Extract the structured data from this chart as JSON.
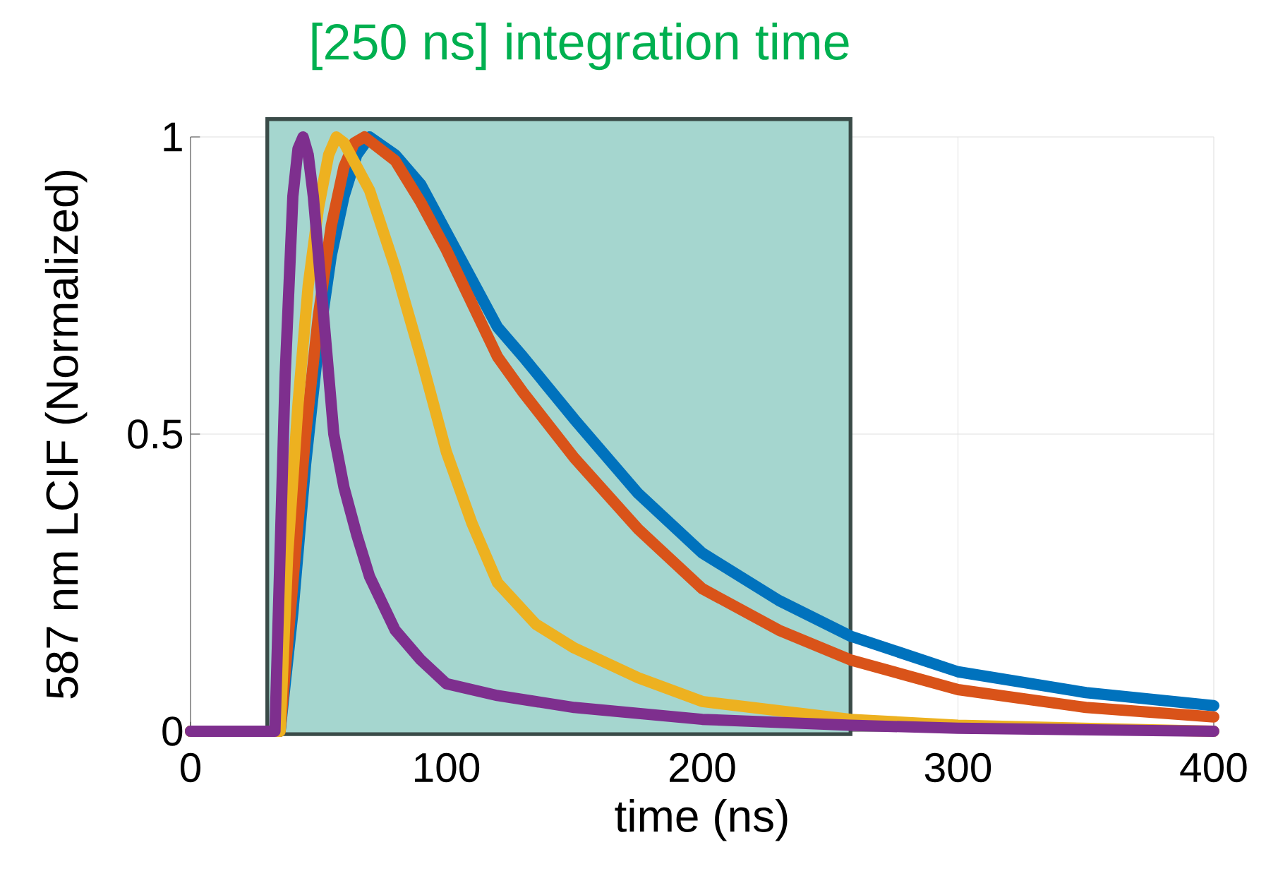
{
  "chart_data": {
    "type": "line",
    "title": "[250 ns] integration time",
    "xlabel": "time (ns)",
    "ylabel": "587 nm LCIF (Normalized)",
    "xlim": [
      0,
      400
    ],
    "xticks": [
      0,
      100,
      200,
      300,
      400
    ],
    "ylim": [
      0,
      1
    ],
    "yticks": [
      0,
      {
        "value": 0.5,
        "label": "0.5"
      },
      1
    ],
    "grid": true,
    "marker": "none",
    "line_style": "solid",
    "bands": [
      {
        "axis": "x",
        "from": 30,
        "to": 258,
        "color": "#a5d6cf"
      }
    ],
    "series": [
      {
        "color": "#0072bd",
        "x": [
          0,
          35,
          40,
          45,
          50,
          55,
          60,
          65,
          70,
          80,
          90,
          100,
          110,
          120,
          130,
          150,
          175,
          200,
          230,
          258,
          300,
          350,
          400
        ],
        "values": [
          0,
          0,
          0.2,
          0.45,
          0.65,
          0.8,
          0.9,
          0.97,
          1.0,
          0.97,
          0.92,
          0.84,
          0.76,
          0.68,
          0.63,
          0.525,
          0.4,
          0.3,
          0.22,
          0.16,
          0.1,
          0.065,
          0.043
        ]
      },
      {
        "color": "#d95319",
        "x": [
          0,
          35,
          40,
          45,
          50,
          55,
          60,
          64,
          68,
          80,
          90,
          100,
          110,
          120,
          130,
          150,
          175,
          200,
          230,
          258,
          300,
          350,
          400
        ],
        "values": [
          0,
          0,
          0.25,
          0.5,
          0.7,
          0.85,
          0.95,
          0.99,
          1.0,
          0.96,
          0.89,
          0.81,
          0.72,
          0.63,
          0.57,
          0.46,
          0.34,
          0.24,
          0.17,
          0.12,
          0.07,
          0.04,
          0.024
        ]
      },
      {
        "color": "#edb120",
        "x": [
          0,
          35,
          38,
          42,
          46,
          50,
          54,
          57,
          60,
          70,
          80,
          90,
          100,
          110,
          120,
          135,
          150,
          175,
          200,
          258,
          300,
          400
        ],
        "values": [
          0,
          0,
          0.3,
          0.55,
          0.75,
          0.88,
          0.97,
          1.0,
          0.99,
          0.91,
          0.78,
          0.63,
          0.47,
          0.35,
          0.25,
          0.18,
          0.14,
          0.09,
          0.05,
          0.02,
          0.01,
          0
        ]
      },
      {
        "color": "#7e2f8e",
        "x": [
          0,
          33,
          35,
          37,
          40,
          42,
          44,
          46,
          48,
          52,
          56,
          60,
          65,
          70,
          80,
          90,
          100,
          120,
          150,
          200,
          258,
          300,
          400
        ],
        "values": [
          0,
          0,
          0.3,
          0.6,
          0.9,
          0.98,
          1.0,
          0.97,
          0.9,
          0.7,
          0.5,
          0.41,
          0.33,
          0.26,
          0.17,
          0.12,
          0.08,
          0.06,
          0.04,
          0.02,
          0.01,
          0.005,
          0
        ]
      }
    ]
  }
}
